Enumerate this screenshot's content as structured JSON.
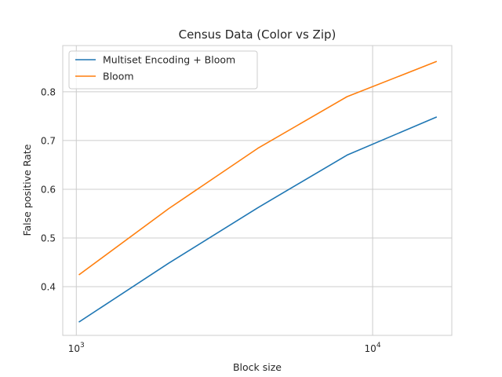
{
  "chart_data": {
    "type": "line",
    "title": "Census Data (Color vs Zip)",
    "xlabel": "Block size",
    "ylabel": "False positive Rate",
    "xscale": "log",
    "xlim": [
      900,
      18500
    ],
    "ylim": [
      0.3,
      0.895
    ],
    "grid": true,
    "legend_position": "top-left",
    "x_ticks": [
      {
        "value": 1000,
        "base": "10",
        "exp": "3"
      },
      {
        "value": 10000,
        "base": "10",
        "exp": "4"
      }
    ],
    "y_ticks": [
      {
        "value": 0.4,
        "label": "0.4"
      },
      {
        "value": 0.5,
        "label": "0.5"
      },
      {
        "value": 0.6,
        "label": "0.6"
      },
      {
        "value": 0.7,
        "label": "0.7"
      },
      {
        "value": 0.8,
        "label": "0.8"
      }
    ],
    "x": [
      1024,
      2048,
      4096,
      8192,
      16384
    ],
    "series": [
      {
        "name": "Multiset Encoding + Bloom",
        "color": "#1f77b4",
        "values": [
          0.328,
          0.448,
          0.562,
          0.67,
          0.748
        ]
      },
      {
        "name": "Bloom",
        "color": "#ff7f0e",
        "values": [
          0.425,
          0.56,
          0.684,
          0.79,
          0.862
        ]
      }
    ]
  }
}
